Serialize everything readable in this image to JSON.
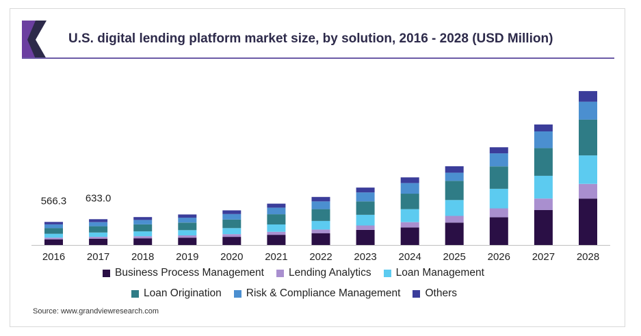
{
  "title": "U.S. digital lending platform market size, by solution, 2016 - 2028 (USD Million)",
  "source": "Source: www.grandviewresearch.com",
  "colors": {
    "accent_purple": "#6b3fa0",
    "accent_dark": "#2d2a4a",
    "rule": "#6b5aa6"
  },
  "chart_data": {
    "type": "bar",
    "stacked": true,
    "title": "U.S. digital lending platform market size, by solution, 2016 - 2028 (USD Million)",
    "categories": [
      "2016",
      "2017",
      "2018",
      "2019",
      "2020",
      "2021",
      "2022",
      "2023",
      "2024",
      "2025",
      "2026",
      "2027",
      "2028"
    ],
    "series": [
      {
        "name": "Business Process Management",
        "color": "#2a0f45",
        "values": [
          140,
          155,
          165,
          180,
          200,
          250,
          290,
          370,
          430,
          550,
          680,
          860,
          1140
        ]
      },
      {
        "name": "Lending Analytics",
        "color": "#a98fcf",
        "values": [
          40,
          45,
          50,
          55,
          65,
          75,
          90,
          110,
          130,
          165,
          220,
          280,
          360
        ]
      },
      {
        "name": "Loan Management",
        "color": "#5ccbf0",
        "values": [
          95,
          105,
          120,
          130,
          150,
          180,
          210,
          260,
          320,
          390,
          480,
          560,
          700
        ]
      },
      {
        "name": "Loan Origination",
        "color": "#2f7c86",
        "values": [
          140,
          155,
          170,
          185,
          210,
          250,
          290,
          330,
          380,
          470,
          550,
          680,
          880
        ]
      },
      {
        "name": "Risk & Compliance Management",
        "color": "#4b8fd0",
        "values": [
          90,
          100,
          110,
          120,
          135,
          160,
          190,
          220,
          260,
          200,
          320,
          410,
          440
        ]
      },
      {
        "name": "Others",
        "color": "#3b3d9a",
        "values": [
          61.3,
          73.0,
          70,
          80,
          90,
          100,
          110,
          120,
          140,
          160,
          150,
          170,
          260
        ]
      }
    ],
    "totals_labeled": {
      "2016": "566.3",
      "2017": "633.0"
    },
    "ylim": [
      0,
      4000
    ],
    "xlabel": "",
    "ylabel": "",
    "legend_position": "bottom",
    "grid": false
  }
}
